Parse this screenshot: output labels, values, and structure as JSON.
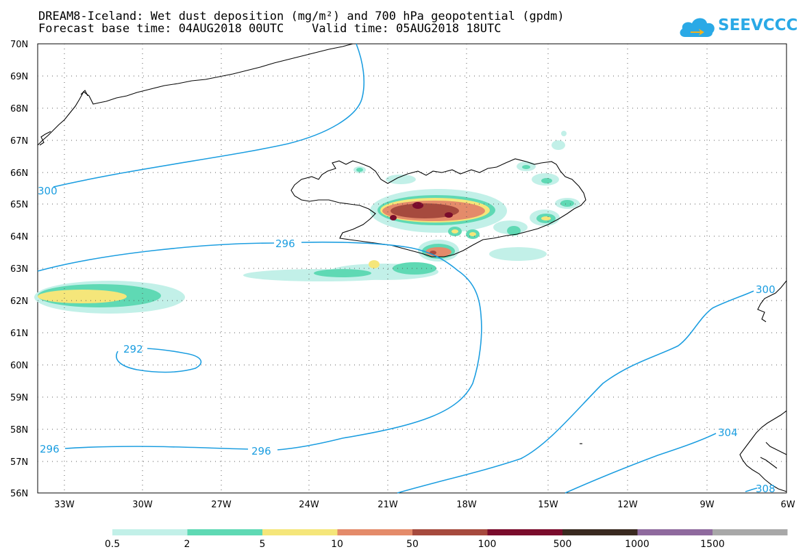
{
  "title": {
    "line1": "DREAM8-Iceland: Wet dust deposition (mg/m²) and 700 hPa geopotential (gpdm)",
    "line2": "Forecast base time: 04AUG2018 00UTC    Valid time: 05AUG2018 18UTC"
  },
  "logo": {
    "text": "SEEVCCC",
    "icon": "cloud-logo-icon"
  },
  "axes": {
    "lat_labels": [
      "70N",
      "69N",
      "68N",
      "67N",
      "66N",
      "65N",
      "64N",
      "63N",
      "62N",
      "61N",
      "60N",
      "59N",
      "58N",
      "57N",
      "56N"
    ],
    "lon_labels": [
      "33W",
      "30W",
      "27W",
      "24W",
      "21W",
      "18W",
      "15W",
      "12W",
      "9W",
      "6W"
    ]
  },
  "contour_labels": [
    "300",
    "296",
    "292",
    "296",
    "296",
    "300",
    "304",
    "308"
  ],
  "legend": {
    "labels": [
      "0.5",
      "2",
      "5",
      "10",
      "50",
      "100",
      "500",
      "1000",
      "1500"
    ],
    "colors": [
      "#c2f0e8",
      "#5fd9b4",
      "#f5e67a",
      "#e48b6a",
      "#a64a3e",
      "#7a0c2c",
      "#3a2a20",
      "#8f6a9e",
      "#a8a8a8"
    ]
  },
  "colors": {
    "contour": "#1a9de0",
    "coast": "#000000"
  }
}
